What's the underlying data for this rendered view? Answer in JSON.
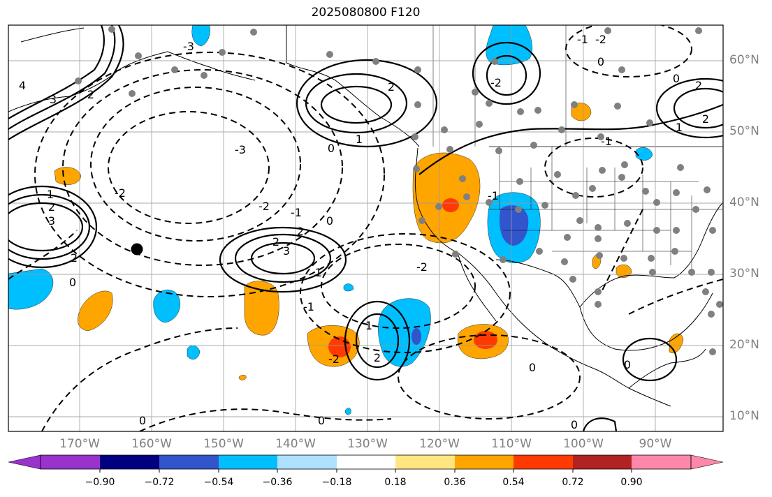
{
  "title": "2025080800 F120",
  "lat_labels": [
    "60°N",
    "50°N",
    "40°N",
    "30°N",
    "20°N",
    "10°N"
  ],
  "lon_labels": [
    "170°W",
    "160°W",
    "150°W",
    "140°W",
    "130°W",
    "120°W",
    "110°W",
    "100°W",
    "90°W"
  ],
  "colorbar": {
    "tick_labels": [
      "−0.90",
      "−0.72",
      "−0.54",
      "−0.36",
      "−0.18",
      "0.18",
      "0.36",
      "0.54",
      "0.72",
      "0.90"
    ],
    "colors": [
      "#9933cc",
      "#000080",
      "#3355cc",
      "#00bfff",
      "#aee0ff",
      "#ffffff",
      "#ffe680",
      "#ffa500",
      "#ff3a00",
      "#b22222",
      "#ff88aa"
    ]
  },
  "contour_labels": [
    "4",
    "3",
    "2",
    "1",
    "0",
    "-1",
    "-2",
    "-3"
  ],
  "styles": {
    "positive_contour": "solid black",
    "negative_contour": "dashed black",
    "station_marker": "#808080"
  }
}
